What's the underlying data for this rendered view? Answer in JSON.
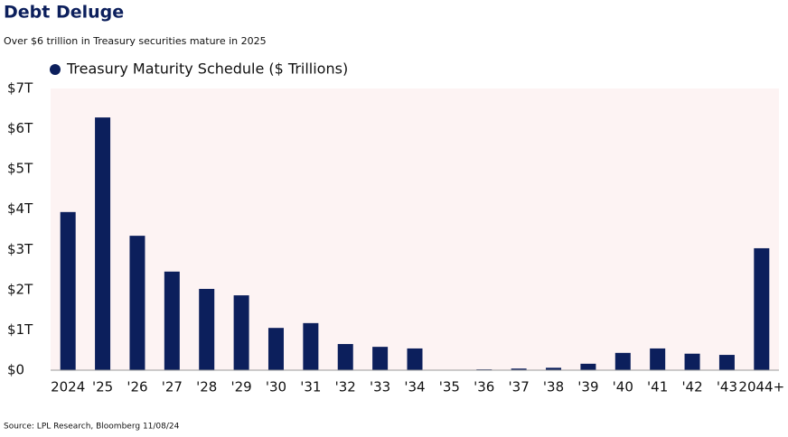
{
  "chart_data": {
    "type": "bar",
    "title": "Debt Deluge",
    "subtitle": "Over $6 trillion in Treasury securities mature in 2025",
    "source": "Source: LPL Research, Bloomberg 11/08/24",
    "categories": [
      "2024",
      "'25",
      "'26",
      "'27",
      "'28",
      "'29",
      "'30",
      "'31",
      "'32",
      "'33",
      "'34",
      "'35",
      "'36",
      "'37",
      "'38",
      "'39",
      "'40",
      "'41",
      "'42",
      "'43",
      "2044+"
    ],
    "series": [
      {
        "name": "Treasury Maturity Schedule ($ Trillions)",
        "color": "#0c1f5c",
        "values": [
          3.93,
          6.28,
          3.34,
          2.45,
          2.02,
          1.86,
          1.05,
          1.17,
          0.65,
          0.58,
          0.54,
          0,
          0.02,
          0.04,
          0.06,
          0.16,
          0.43,
          0.54,
          0.41,
          0.38,
          3.03
        ]
      }
    ],
    "ylim": [
      0,
      7
    ],
    "yticks": [
      {
        "value": 0,
        "label": "$0"
      },
      {
        "value": 1,
        "label": "$1T"
      },
      {
        "value": 2,
        "label": "$2T"
      },
      {
        "value": 3,
        "label": "$3T"
      },
      {
        "value": 4,
        "label": "$4T"
      },
      {
        "value": 5,
        "label": "$5T"
      },
      {
        "value": 6,
        "label": "$6T"
      },
      {
        "value": 7,
        "label": "$7T"
      }
    ],
    "legend": "top-left",
    "plot_background": "#fdf3f3"
  }
}
